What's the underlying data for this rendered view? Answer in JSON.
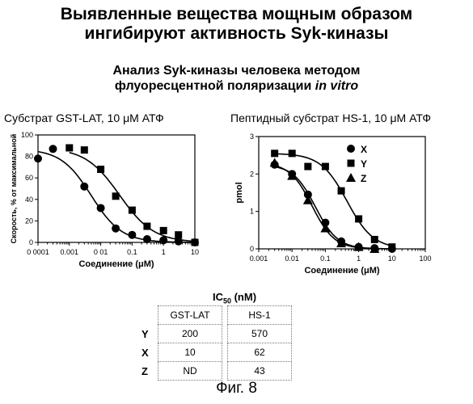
{
  "header": {
    "title_line1": "Выявленные вещества мощным образом",
    "title_line2": "ингибируют активность Syk-киназы",
    "sub_line1": "Анализ Syk-киназы человека методом",
    "sub_line2_prefix": "флуоресцентной поляризации ",
    "sub_line2_italic": "in vitro"
  },
  "chart_data": [
    {
      "type": "scatter",
      "title": "Субстрат GST-LAT, 10 μM АТФ",
      "xlabel": "Соединение (μM)",
      "ylabel": "Скорость, % от максимальной",
      "xscale": "log",
      "xlim": [
        0.0001,
        10
      ],
      "ylim": [
        0,
        100
      ],
      "xticks": [
        "0 0001",
        "0.001",
        "0 01",
        "0.1",
        "1",
        "10"
      ],
      "yticks": [
        "0",
        "20",
        "40",
        "60",
        "80",
        "100"
      ],
      "series": [
        {
          "marker": "circle",
          "x": [
            0.0001,
            0.0003,
            0.003,
            0.01,
            0.03,
            0.1,
            0.3,
            1,
            3,
            10
          ],
          "y": [
            78,
            87,
            52,
            32,
            13,
            7,
            3,
            2,
            1,
            0
          ]
        },
        {
          "marker": "square",
          "x": [
            0.001,
            0.003,
            0.01,
            0.03,
            0.1,
            0.3,
            1,
            3,
            10
          ],
          "y": [
            88,
            86,
            68,
            43,
            30,
            15,
            11,
            7,
            0
          ]
        }
      ]
    },
    {
      "type": "scatter",
      "title": "Пептидный субстрат HS-1, 10 μM АТФ",
      "xlabel": "Соединение (μM)",
      "ylabel": "pmol",
      "xscale": "log",
      "xlim": [
        0.001,
        100
      ],
      "ylim": [
        0,
        3
      ],
      "xticks": [
        "0.001",
        "0.01",
        "0.1",
        "1",
        "10",
        "100"
      ],
      "yticks": [
        "0",
        "1",
        "2",
        "3"
      ],
      "legend_position": "top-right",
      "series": [
        {
          "name": "X",
          "marker": "circle",
          "x": [
            0.003,
            0.01,
            0.03,
            0.1,
            0.3,
            1,
            3,
            10
          ],
          "y": [
            2.25,
            2.0,
            1.45,
            0.7,
            0.2,
            0.05,
            0.02,
            0.0
          ]
        },
        {
          "name": "Y",
          "marker": "square",
          "x": [
            0.003,
            0.01,
            0.03,
            0.1,
            0.3,
            1,
            3,
            10
          ],
          "y": [
            2.55,
            2.55,
            2.2,
            2.2,
            1.55,
            0.8,
            0.25,
            0.05
          ]
        },
        {
          "name": "Z",
          "marker": "triangle",
          "x": [
            0.003,
            0.01,
            0.03,
            0.1,
            0.3,
            1,
            3
          ],
          "y": [
            2.3,
            1.95,
            1.3,
            0.55,
            0.15,
            0.05,
            0.0
          ]
        }
      ]
    }
  ],
  "ic50": {
    "title": "IC",
    "title_sub": "50",
    "title_unit": " (nM)",
    "col1": "GST-LAT",
    "col2": "HS-1",
    "rows": [
      {
        "label": "Y",
        "v1": "200",
        "v2": "570"
      },
      {
        "label": "X",
        "v1": "10",
        "v2": "62"
      },
      {
        "label": "Z",
        "v1": "ND",
        "v2": "43"
      }
    ]
  },
  "figure_label": "Фиг. 8"
}
